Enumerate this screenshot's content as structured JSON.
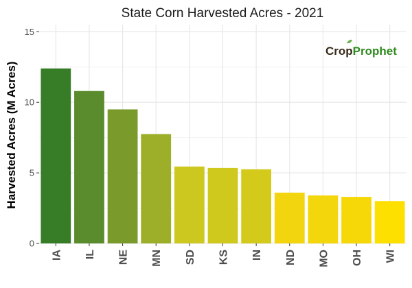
{
  "chart_data": {
    "type": "bar",
    "title": "State Corn Harvested Acres - 2021",
    "xlabel": "",
    "ylabel": "Harvested Acres (M Acres)",
    "ylim": [
      0,
      15.5
    ],
    "yticks": [
      0,
      5,
      10,
      15
    ],
    "grid": true,
    "categories": [
      "IA",
      "IL",
      "NE",
      "MN",
      "SD",
      "KS",
      "IN",
      "ND",
      "MO",
      "OH",
      "WI"
    ],
    "values": [
      12.4,
      10.8,
      9.5,
      7.75,
      5.45,
      5.35,
      5.25,
      3.6,
      3.4,
      3.3,
      3.0
    ],
    "colors": [
      "#377d28",
      "#5a8c2d",
      "#7a9a2c",
      "#9daf29",
      "#cdc81f",
      "#cfc81d",
      "#d3ca1b",
      "#f2d40f",
      "#f4d60c",
      "#f6d808",
      "#fde000"
    ]
  },
  "logo": {
    "part1": "Crop",
    "part2": "Prophet",
    "colors": {
      "part1": "#3a2a1a",
      "part2": "#2e8b1e",
      "leaf": "#6ab04c"
    }
  }
}
